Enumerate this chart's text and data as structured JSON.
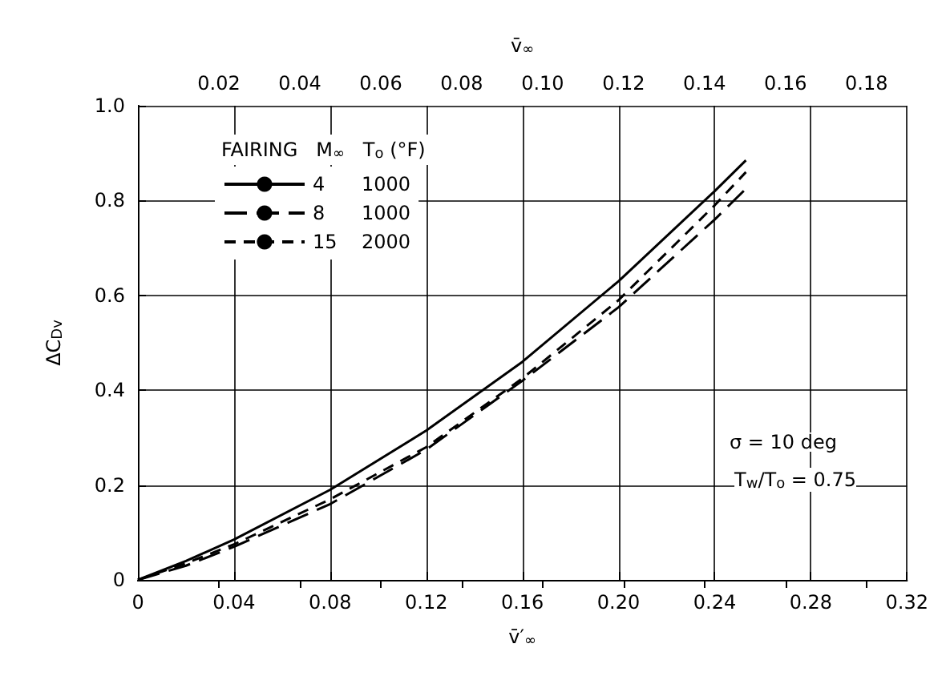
{
  "chart_data": {
    "type": "line",
    "xlabel": "v̄′$_{∞}$",
    "x2label": "v̄$_{∞}$",
    "ylabel": "ΔC$_{Dv}$",
    "legend_title": "FAIRING   M$_{∞}$   T$_{o}$ (°F)",
    "annotations": [
      "σ = 10 deg",
      "T$_{w}$/T$_{o}$ = 0.75"
    ],
    "x": [
      0,
      0.02,
      0.04,
      0.08,
      0.12,
      0.16,
      0.2,
      0.24,
      0.253
    ],
    "series": [
      {
        "name": "4      1000",
        "color": "#000000",
        "line_style": "solid",
        "values": [
          0,
          0.04,
          0.085,
          0.19,
          0.315,
          0.46,
          0.63,
          0.82,
          0.885
        ]
      },
      {
        "name": "8      1000",
        "color": "#000000",
        "line_style": "dashed",
        "values": [
          0,
          0.03,
          0.07,
          0.16,
          0.275,
          0.42,
          0.575,
          0.76,
          0.825
        ]
      },
      {
        "name": "15    2000",
        "color": "#000000",
        "line_style": "dashed",
        "values": [
          0,
          0.035,
          0.075,
          0.17,
          0.28,
          0.425,
          0.59,
          0.79,
          0.86
        ]
      }
    ],
    "xlim": [
      0,
      0.32
    ],
    "xticks": [
      0,
      0.04,
      0.08,
      0.12,
      0.16,
      {
        "value": 0.2,
        "label": "0.20"
      },
      0.24,
      0.28,
      0.32
    ],
    "x2lim": [
      0,
      0.19
    ],
    "x2ticks": [
      0.02,
      0.04,
      0.06,
      0.08,
      {
        "value": 0.1,
        "label": "0.10"
      },
      0.12,
      0.14,
      0.16,
      0.18
    ],
    "ylim": [
      0,
      1
    ],
    "yticks": [
      0,
      0.2,
      0.4,
      0.6,
      0.8,
      {
        "value": 1,
        "label": "1.0"
      }
    ],
    "grid": true,
    "legend": "top left",
    "marker": "none"
  }
}
